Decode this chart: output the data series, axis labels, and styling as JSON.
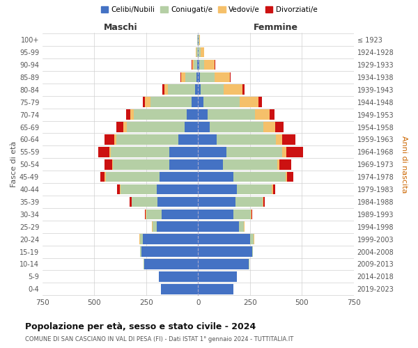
{
  "age_groups": [
    "0-4",
    "5-9",
    "10-14",
    "15-19",
    "20-24",
    "25-29",
    "30-34",
    "35-39",
    "40-44",
    "45-49",
    "50-54",
    "55-59",
    "60-64",
    "65-69",
    "70-74",
    "75-79",
    "80-84",
    "85-89",
    "90-94",
    "95-99",
    "100+"
  ],
  "birth_years": [
    "2019-2023",
    "2014-2018",
    "2009-2013",
    "2004-2008",
    "1999-2003",
    "1994-1998",
    "1989-1993",
    "1984-1988",
    "1979-1983",
    "1974-1978",
    "1969-1973",
    "1964-1968",
    "1959-1963",
    "1954-1958",
    "1949-1953",
    "1944-1948",
    "1939-1943",
    "1934-1938",
    "1929-1933",
    "1924-1928",
    "≤ 1923"
  ],
  "males": {
    "celibi": [
      180,
      190,
      260,
      275,
      265,
      200,
      175,
      195,
      200,
      185,
      140,
      140,
      95,
      65,
      55,
      30,
      15,
      8,
      5,
      3,
      2
    ],
    "coniugati": [
      0,
      0,
      2,
      4,
      15,
      20,
      75,
      125,
      175,
      260,
      270,
      280,
      300,
      280,
      255,
      200,
      130,
      55,
      15,
      5,
      2
    ],
    "vedovi": [
      0,
      0,
      0,
      0,
      2,
      2,
      2,
      2,
      3,
      5,
      5,
      8,
      10,
      15,
      18,
      25,
      18,
      18,
      8,
      2,
      0
    ],
    "divorziati": [
      0,
      0,
      0,
      0,
      2,
      2,
      5,
      8,
      12,
      20,
      35,
      55,
      45,
      35,
      18,
      10,
      8,
      5,
      2,
      0,
      0
    ]
  },
  "females": {
    "nubili": [
      170,
      185,
      245,
      260,
      250,
      195,
      170,
      180,
      185,
      170,
      120,
      135,
      90,
      55,
      45,
      25,
      12,
      8,
      5,
      3,
      2
    ],
    "coniugate": [
      0,
      0,
      2,
      4,
      18,
      25,
      85,
      130,
      170,
      250,
      260,
      270,
      285,
      260,
      230,
      175,
      110,
      70,
      25,
      8,
      3
    ],
    "vedove": [
      0,
      0,
      0,
      0,
      2,
      2,
      2,
      3,
      5,
      8,
      12,
      20,
      30,
      55,
      70,
      90,
      90,
      75,
      50,
      18,
      2
    ],
    "divorziate": [
      0,
      0,
      0,
      0,
      2,
      2,
      5,
      8,
      10,
      30,
      55,
      80,
      65,
      40,
      22,
      18,
      10,
      5,
      3,
      0,
      0
    ]
  },
  "colors": {
    "celibi": "#4472c4",
    "coniugati": "#b5cfa5",
    "vedovi": "#f5c06a",
    "divorziati": "#cc1111"
  },
  "title": "Popolazione per età, sesso e stato civile - 2024",
  "subtitle": "COMUNE DI SAN CASCIANO IN VAL DI PESA (FI) - Dati ISTAT 1° gennaio 2024 - TUTTITALIA.IT",
  "xlabel_left": "Maschi",
  "xlabel_right": "Femmine",
  "ylabel_left": "Fasce di età",
  "ylabel_right": "Anni di nascita",
  "xlim": 750,
  "legend_labels": [
    "Celibi/Nubili",
    "Coniugati/e",
    "Vedovi/e",
    "Divorziati/e"
  ],
  "bg_color": "#ffffff",
  "grid_color": "#d0d0d0"
}
